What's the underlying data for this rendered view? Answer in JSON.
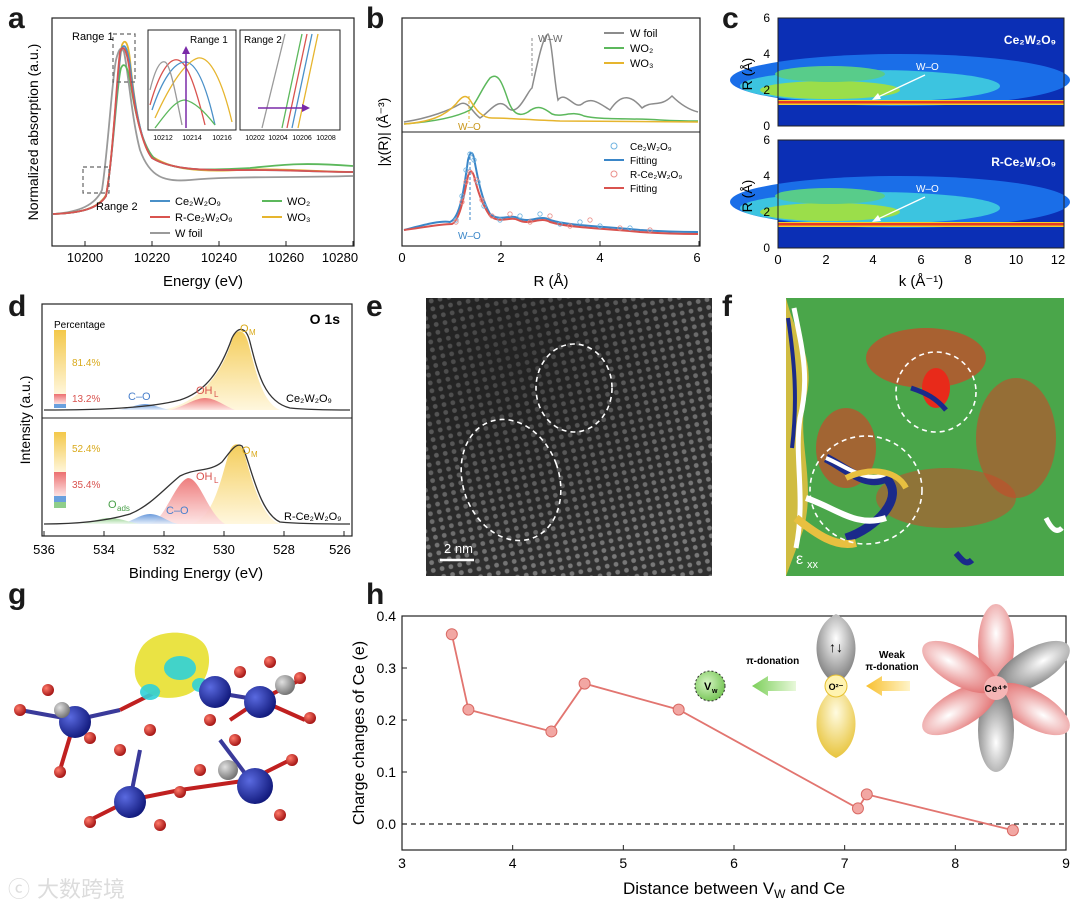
{
  "panels": {
    "a": {
      "letter": "a",
      "ylabel": "Normalized absorption (a.u.)",
      "xlabel": "Energy (eV)",
      "xticks": [
        "10200",
        "10220",
        "10240",
        "10260",
        "10280"
      ],
      "range1": "Range 1",
      "range2": "Range 2",
      "inset1": {
        "label": "Range 1",
        "xticks": [
          "10212",
          "10214",
          "10216"
        ]
      },
      "inset2": {
        "label": "Range 2",
        "xticks": [
          "10202",
          "10204",
          "10206",
          "10208"
        ]
      },
      "legend": [
        {
          "name": "Ce₂W₂O₉",
          "color": "#4a90c8"
        },
        {
          "name": "R-Ce₂W₂O₉",
          "color": "#d9534f"
        },
        {
          "name": "W foil",
          "color": "#9a9a9a"
        },
        {
          "name": "WO₂",
          "color": "#5cb85c"
        },
        {
          "name": "WO₃",
          "color": "#e6b52e"
        }
      ]
    },
    "b": {
      "letter": "b",
      "ylabel": "|χ(R)| (Å⁻³)",
      "xlabel": "R (Å)",
      "xticks": [
        "0",
        "2",
        "4",
        "6"
      ],
      "ann_ww": "W–W",
      "ann_wo_top": "W–O",
      "ann_wo_bottom": "W–O",
      "legend_top": [
        {
          "name": "W foil",
          "color": "#8c8c8c"
        },
        {
          "name": "WO₂",
          "color": "#5cb85c"
        },
        {
          "name": "WO₃",
          "color": "#e6b52e"
        }
      ],
      "legend_bottom": [
        {
          "name": "Ce₂W₂O₉",
          "marker": "circle",
          "color": "#6fb3e0"
        },
        {
          "name": "Fitting",
          "marker": "line",
          "color": "#3a86c8"
        },
        {
          "name": "R-Ce₂W₂O₉",
          "marker": "circle",
          "color": "#ea8f8a"
        },
        {
          "name": "Fitting",
          "marker": "line",
          "color": "#d9534f"
        }
      ]
    },
    "c": {
      "letter": "c",
      "ylabel": "R (Å)",
      "xlabel": "k (Å⁻¹)",
      "xticks": [
        "0",
        "2",
        "4",
        "6",
        "8",
        "10",
        "12"
      ],
      "yticks": [
        "0",
        "2",
        "4",
        "6"
      ],
      "top_label": "Ce₂W₂O₉",
      "bottom_label": "R-Ce₂W₂O₉",
      "ann": "W–O"
    },
    "d": {
      "letter": "d",
      "title": "O 1s",
      "ylabel": "Intensity (a.u.)",
      "xlabel": "Binding Energy (eV)",
      "xticks": [
        "536",
        "534",
        "532",
        "530",
        "528",
        "526"
      ],
      "percentage": "Percentage",
      "top": {
        "pct_om": "81.4%",
        "pct_oh": "13.2%",
        "om": "O",
        "om_sub": "M",
        "oh": "OH",
        "oh_sub": "L",
        "co": "C–O",
        "sample": "Ce₂W₂O₉"
      },
      "bottom": {
        "pct_om": "52.4%",
        "pct_oh": "35.4%",
        "om": "O",
        "om_sub": "M",
        "oh": "OH",
        "oh_sub": "L",
        "co": "C–O",
        "oads": "O",
        "oads_sub": "ads",
        "sample": "R-Ce₂W₂O₉"
      }
    },
    "e": {
      "letter": "e",
      "scale": "2 nm"
    },
    "f": {
      "letter": "f",
      "label": "ε",
      "label_sub": "xx"
    },
    "g": {
      "letter": "g"
    },
    "h": {
      "letter": "h",
      "ylabel": "Charge changes of Ce (e)",
      "xlabel": "Distance between V",
      "xlabel_sub": "W",
      "xlabel_end": " and Ce",
      "pi_donation": "π-donation",
      "weak1": "Weak",
      "weak2": "π-donation",
      "vw": "V",
      "vw_sub": "w",
      "o2": "O²⁻",
      "ce4": "Ce⁴⁺",
      "arrows": "↑↓"
    }
  },
  "chart_data": [
    {
      "type": "line",
      "panel": "h",
      "title": "",
      "xlabel": "Distance between VW and Ce",
      "ylabel": "Charge changes of Ce (e)",
      "x": [
        3.45,
        3.6,
        4.35,
        4.65,
        5.5,
        7.12,
        7.2,
        8.52
      ],
      "y": [
        0.365,
        0.22,
        0.178,
        0.27,
        0.22,
        0.03,
        0.057,
        -0.012
      ],
      "xlim": [
        3,
        9
      ],
      "ylim": [
        -0.05,
        0.4
      ],
      "xticks": [
        "3",
        "4",
        "5",
        "6",
        "7",
        "8",
        "9"
      ],
      "yticks": [
        "0.0",
        "0.1",
        "0.2",
        "0.3",
        "0.4"
      ],
      "reference_line": 0,
      "color": "#e27570"
    },
    {
      "type": "line",
      "panel": "a",
      "xlabel": "Energy (eV)",
      "ylabel": "Normalized absorption (a.u.)",
      "xlim": [
        10190,
        10280
      ],
      "series": [
        {
          "name": "Ce2W2O9",
          "peak_energy": 10213.5
        },
        {
          "name": "R-Ce2W2O9",
          "peak_energy": 10213.0
        },
        {
          "name": "W foil",
          "peak_energy": 10210.0
        },
        {
          "name": "WO2",
          "peak_energy": 10213.0
        },
        {
          "name": "WO3",
          "peak_energy": 10214.0
        }
      ]
    },
    {
      "type": "line",
      "panel": "b",
      "xlabel": "R (Å)",
      "xlim": [
        0,
        6
      ],
      "series": [
        {
          "name": "W foil",
          "main_peak_R": 2.6
        },
        {
          "name": "WO2",
          "main_peak_R": 1.7
        },
        {
          "name": "WO3",
          "main_peak_R": 1.4
        },
        {
          "name": "Ce2W2O9",
          "main_peak_R": 1.4
        },
        {
          "name": "R-Ce2W2O9",
          "main_peak_R": 1.4
        }
      ]
    }
  ]
}
